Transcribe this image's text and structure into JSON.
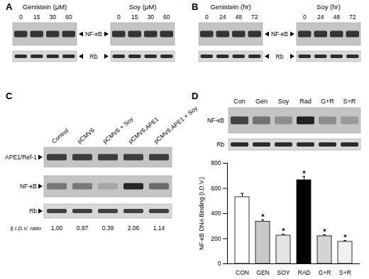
{
  "panels": {
    "A": {
      "label": "A",
      "blots": [
        {
          "title": "Genistein (μM)",
          "lanes": [
            "0",
            "15",
            "30",
            "60"
          ]
        },
        {
          "title": "Soy (μM)",
          "lanes": [
            "0",
            "15",
            "30",
            "60"
          ]
        }
      ],
      "rows": [
        "NF-κB",
        "Rb"
      ]
    },
    "B": {
      "label": "B",
      "blots": [
        {
          "title": "Genistein (hr)",
          "lanes": [
            "0",
            "24",
            "48",
            "72"
          ]
        },
        {
          "title": "Soy (hr)",
          "lanes": [
            "0",
            "24",
            "48",
            "72"
          ]
        }
      ],
      "rows": [
        "NF-κB",
        "Rb"
      ]
    },
    "C": {
      "label": "C",
      "lanes": [
        "Control",
        "pCMV6",
        "pCMV6 + Soy",
        "pCMV6.APE1",
        "pCMV6.APE1 + Soy"
      ],
      "rows": [
        "APE1/Ref-1",
        "NF-κB",
        "Rb"
      ],
      "ratio_label": "§ I.D.V. ratio",
      "ratios": [
        "1.00",
        "0.97",
        "0.39",
        "2.06",
        "1.14"
      ]
    },
    "D": {
      "label": "D",
      "lanes": [
        "Con",
        "Gen",
        "Soy",
        "Rad",
        "G+R",
        "S+R"
      ],
      "rows": [
        "NF-κB",
        "Rb"
      ]
    }
  },
  "chart_data": {
    "type": "bar",
    "categories": [
      "CON",
      "GEN",
      "SOY",
      "RAD",
      "G+R",
      "S+R"
    ],
    "values": [
      530,
      335,
      225,
      665,
      220,
      175
    ],
    "errors": [
      30,
      15,
      10,
      30,
      10,
      10
    ],
    "colors": [
      "#ffffff",
      "#c8c8c8",
      "#e4e4e4",
      "#000000",
      "#d4d4d4",
      "#f0f0f0"
    ],
    "ylabel": "NF-κB DNA Binding (I.D.V.)",
    "ylim": [
      0,
      800
    ],
    "yticks": [
      0,
      200,
      400,
      600,
      800
    ],
    "annotations": [
      {
        "category": "GEN",
        "text": "*"
      },
      {
        "category": "SOY",
        "text": "*"
      },
      {
        "category": "RAD",
        "text": "*"
      },
      {
        "category": "G+R",
        "text": "*"
      },
      {
        "category": "S+R",
        "text": "*"
      }
    ]
  }
}
